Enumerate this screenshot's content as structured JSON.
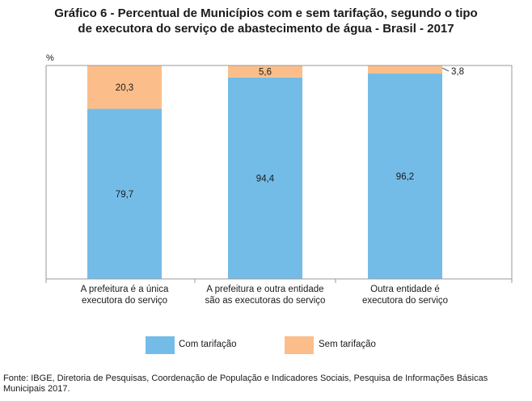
{
  "title_lines": [
    "Gráfico 6 - Percentual de Municípios com e sem tarifação, segundo o tipo",
    "de executora do serviço de abastecimento de água - Brasil - 2017"
  ],
  "chart_data": {
    "type": "bar",
    "stacked": true,
    "unit_label": "%",
    "categories": [
      [
        "A prefeitura é a única",
        "executora do serviço"
      ],
      [
        "A prefeitura e outra entidade",
        "são as executoras do serviço"
      ],
      [
        "Outra entidade é",
        "executora do serviço"
      ]
    ],
    "series": [
      {
        "name": "Com tarifação",
        "values": [
          79.7,
          94.4,
          96.2
        ],
        "labels": [
          "79,7",
          "94,4",
          "96,2"
        ],
        "color": "#74bce8"
      },
      {
        "name": "Sem tarifação",
        "values": [
          20.3,
          5.6,
          3.8
        ],
        "labels": [
          "20,3",
          "5,6",
          "3,8"
        ],
        "color": "#fbbe8a"
      }
    ],
    "ylim": [
      0,
      100
    ],
    "grid": false,
    "legend_position": "bottom"
  },
  "source": "Fonte: IBGE, Diretoria de Pesquisas, Coordenação de População e Indicadores Sociais, Pesquisa de Informações Básicas Municipais 2017."
}
